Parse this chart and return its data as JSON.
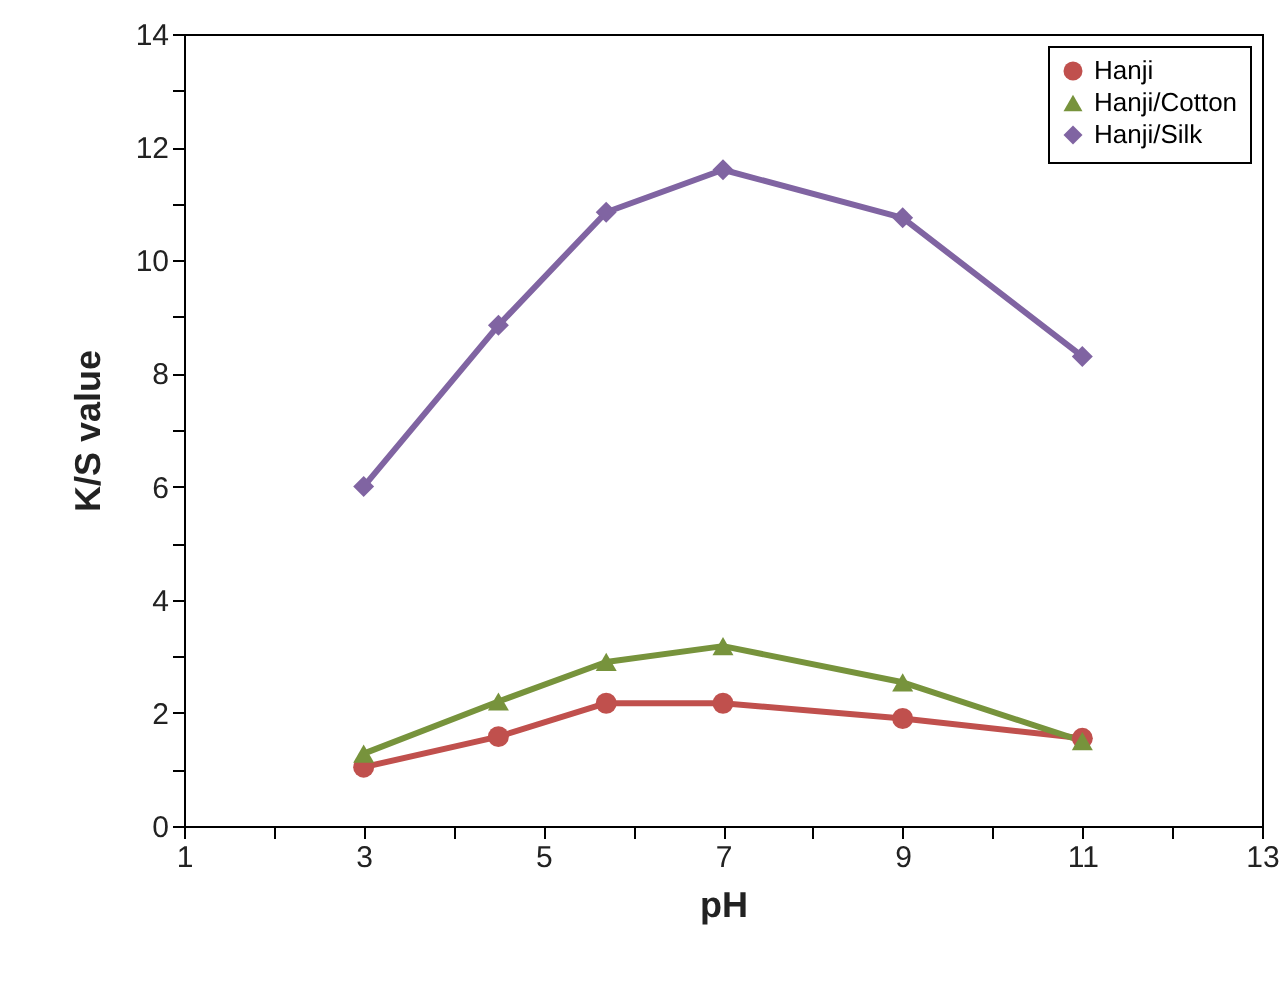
{
  "chart_data": {
    "type": "line",
    "xlabel": "pH",
    "ylabel": "K/S  value",
    "x": [
      3,
      4.5,
      5.7,
      7,
      9,
      11
    ],
    "series": [
      {
        "name": "Hanji",
        "color": "#c0504d",
        "marker": "circle",
        "values": [
          1.04,
          1.58,
          2.17,
          2.17,
          1.9,
          1.55
        ]
      },
      {
        "name": "Hanji/Cotton",
        "color": "#77933c",
        "marker": "triangle",
        "values": [
          1.28,
          2.2,
          2.9,
          3.18,
          2.54,
          1.5
        ]
      },
      {
        "name": "Hanji/Silk",
        "color": "#8064a2",
        "marker": "diamond",
        "values": [
          6.0,
          8.85,
          10.85,
          11.6,
          10.75,
          8.3
        ]
      }
    ],
    "xlim": [
      1,
      13
    ],
    "xticks": [
      1,
      {
        "value": 2,
        "label": null
      },
      3,
      {
        "value": 4,
        "label": null
      },
      5,
      {
        "value": 6,
        "label": null
      },
      7,
      {
        "value": 8,
        "label": null
      },
      9,
      {
        "value": 10,
        "label": null
      },
      11,
      {
        "value": 12,
        "label": null
      },
      13
    ],
    "ylim": [
      0,
      14
    ],
    "yticks": [
      0,
      {
        "value": 1,
        "label": null
      },
      2,
      {
        "value": 3,
        "label": null
      },
      4,
      {
        "value": 5,
        "label": null
      },
      6,
      {
        "value": 7,
        "label": null
      },
      8,
      {
        "value": 9,
        "label": null
      },
      10,
      {
        "value": 11,
        "label": null
      },
      12,
      {
        "value": 13,
        "label": null
      },
      14
    ],
    "grid": false,
    "legend": "top right",
    "line_style": "solid"
  }
}
